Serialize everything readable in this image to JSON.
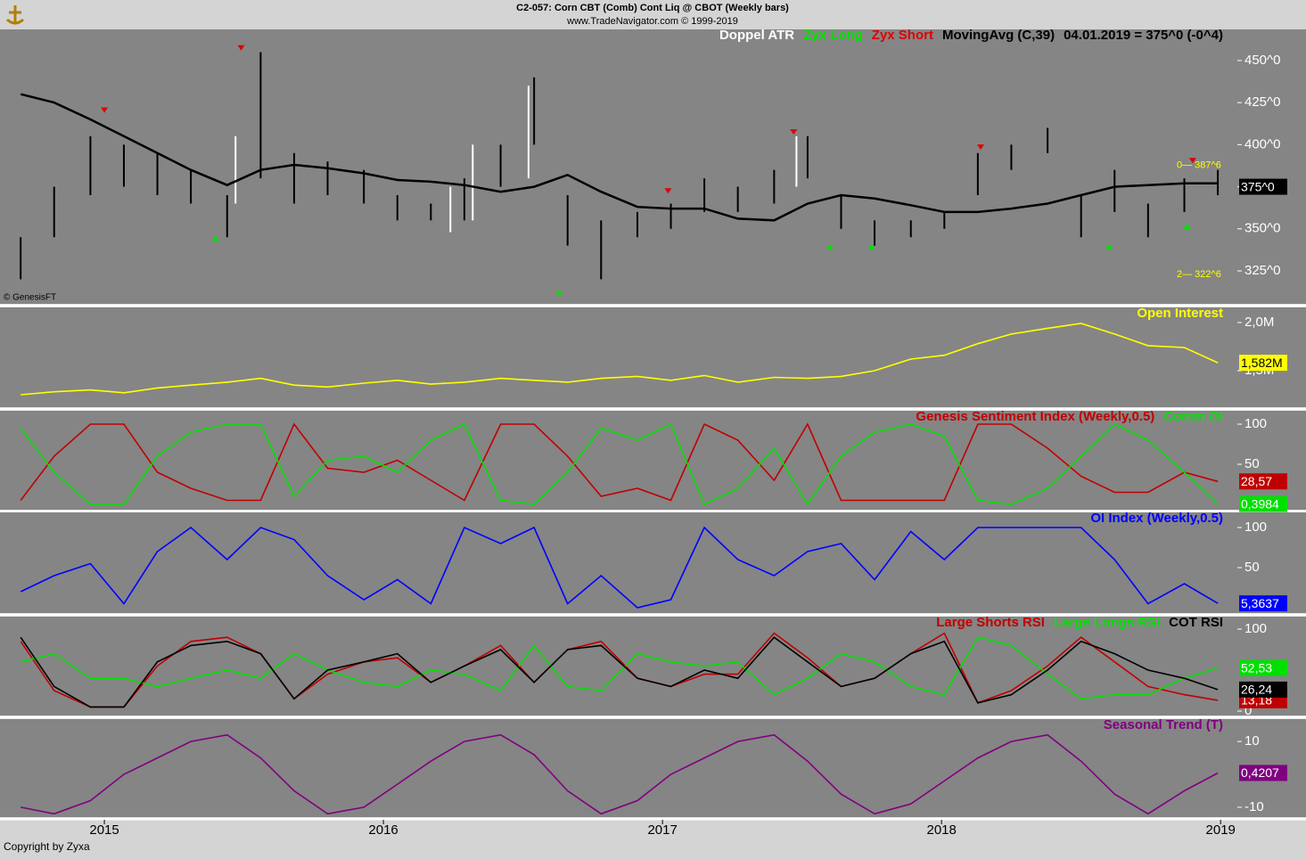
{
  "header": {
    "title": "C2-057:  Corn CBT (Comb) Cont Liq @ CBOT  (Weekly bars)",
    "subtitle": "www.TradeNavigator.com © 1999-2019"
  },
  "footer": "Copyright by Zyxa",
  "chart_data": [
    {
      "type": "ohlc",
      "x": [
        2014.7,
        2014.82,
        2014.95,
        2015.07,
        2015.19,
        2015.31,
        2015.44,
        2015.56,
        2015.68,
        2015.8,
        2015.93,
        2016.05,
        2016.17,
        2016.29,
        2016.42,
        2016.54,
        2016.66,
        2016.78,
        2016.91,
        2017.03,
        2017.15,
        2017.27,
        2017.4,
        2017.52,
        2017.64,
        2017.76,
        2017.89,
        2018.01,
        2018.13,
        2018.25,
        2018.38,
        2018.5,
        2018.62,
        2018.74,
        2018.87,
        2018.99
      ],
      "xlim": [
        2014.642,
        2019.06
      ],
      "high": [
        345,
        375,
        405,
        400,
        395,
        385,
        370,
        455,
        395,
        390,
        385,
        370,
        365,
        380,
        400,
        440,
        370,
        355,
        360,
        365,
        380,
        375,
        385,
        405,
        370,
        355,
        355,
        360,
        395,
        400,
        410,
        370,
        385,
        365,
        380,
        385
      ],
      "low": [
        320,
        345,
        370,
        375,
        370,
        365,
        345,
        380,
        365,
        370,
        365,
        355,
        355,
        355,
        375,
        400,
        340,
        320,
        345,
        350,
        360,
        360,
        365,
        380,
        350,
        340,
        345,
        350,
        370,
        385,
        395,
        345,
        360,
        345,
        360,
        370
      ],
      "color": "#000000",
      "ylim": [
        305.4,
        468.5
      ],
      "yticks": [
        {
          "value": 325,
          "label": "325^0"
        },
        {
          "value": 350,
          "label": "350^0"
        },
        {
          "value": 375,
          "label": "375^0"
        },
        {
          "value": 400,
          "label": "400^0"
        },
        {
          "value": 425,
          "label": "425^0"
        },
        {
          "value": 450,
          "label": "450^0"
        }
      ],
      "watermark": "© GenesisFT",
      "readout": "04.01.2019 = 375^0 (-0^4)",
      "last": {
        "value": 375,
        "label": "375^0"
      },
      "annotations": [
        {
          "value": 387.75,
          "label": "0— 387^6"
        },
        {
          "value": 322.75,
          "label": "2— 322^6"
        }
      ],
      "series": [
        {
          "name": "Doppel ATR",
          "color": "#ffffff",
          "x": [
            2015.47,
            2016.24,
            2016.32,
            2016.52,
            2017.48
          ],
          "high": [
            405,
            375,
            400,
            435,
            405
          ],
          "low": [
            365,
            348,
            355,
            380,
            375
          ]
        },
        {
          "name": "Zyx Long",
          "color": "#00e000",
          "marker": "up",
          "x": [
            2015.4,
            2016.63,
            2017.6,
            2017.75,
            2018.6,
            2018.88
          ],
          "values": [
            345,
            313,
            340,
            340,
            340,
            352
          ]
        },
        {
          "name": "Zyx Short",
          "color": "#e00000",
          "marker": "down",
          "x": [
            2015.0,
            2015.49,
            2017.02,
            2017.47,
            2018.14,
            2018.9
          ],
          "values": [
            420,
            457,
            372,
            407,
            398,
            390
          ]
        },
        {
          "name": "MovingAvg (C,39)",
          "color": "#000000",
          "values": [
            430,
            425,
            415,
            405,
            395,
            385,
            376,
            385,
            388,
            386,
            383,
            379,
            378,
            376,
            372,
            375,
            382,
            372,
            363,
            362,
            362,
            356,
            355,
            365,
            370,
            368,
            364,
            360,
            360,
            362,
            365,
            370,
            375,
            376,
            377,
            377
          ]
        }
      ]
    },
    {
      "type": "line",
      "x": [
        2014.7,
        2014.82,
        2014.95,
        2015.07,
        2015.19,
        2015.31,
        2015.44,
        2015.56,
        2015.68,
        2015.8,
        2015.93,
        2016.05,
        2016.17,
        2016.29,
        2016.42,
        2016.54,
        2016.66,
        2016.78,
        2016.91,
        2017.03,
        2017.15,
        2017.27,
        2017.4,
        2017.52,
        2017.64,
        2017.76,
        2017.89,
        2018.01,
        2018.13,
        2018.25,
        2018.38,
        2018.5,
        2018.62,
        2018.74,
        2018.87,
        2018.99
      ],
      "xlim": [
        2014.642,
        2019.06
      ],
      "ylim": [
        1120000,
        2157000
      ],
      "yticks": [
        {
          "value": 1500000,
          "label": "1,5M"
        },
        {
          "value": 2000000,
          "label": "2,0M"
        }
      ],
      "series": [
        {
          "name": "Open Interest",
          "color": "#ffff00",
          "last_label": "1,582M",
          "values": [
            1250000,
            1280000,
            1300000,
            1270000,
            1320000,
            1350000,
            1380000,
            1420000,
            1350000,
            1330000,
            1370000,
            1400000,
            1360000,
            1380000,
            1420000,
            1400000,
            1380000,
            1420000,
            1440000,
            1400000,
            1450000,
            1380000,
            1430000,
            1420000,
            1440000,
            1500000,
            1620000,
            1660000,
            1780000,
            1880000,
            1940000,
            1990000,
            1880000,
            1760000,
            1740000,
            1582000
          ]
        }
      ]
    },
    {
      "type": "line",
      "x": [
        2014.7,
        2014.82,
        2014.95,
        2015.07,
        2015.19,
        2015.31,
        2015.44,
        2015.56,
        2015.68,
        2015.8,
        2015.93,
        2016.05,
        2016.17,
        2016.29,
        2016.42,
        2016.54,
        2016.66,
        2016.78,
        2016.91,
        2017.03,
        2017.15,
        2017.27,
        2017.4,
        2017.52,
        2017.64,
        2017.76,
        2017.89,
        2018.01,
        2018.13,
        2018.25,
        2018.38,
        2018.5,
        2018.62,
        2018.74,
        2018.87,
        2018.99
      ],
      "xlim": [
        2014.642,
        2019.06
      ],
      "ylim": [
        -6.7,
        116.7
      ],
      "yticks": [
        50,
        100
      ],
      "series": [
        {
          "name": "Genesis Sentiment Index (Weekly,0.5)",
          "color": "#c00000",
          "last_label": "28,57",
          "values": [
            5,
            60,
            100,
            100,
            40,
            20,
            5,
            5,
            100,
            45,
            40,
            55,
            30,
            5,
            100,
            100,
            60,
            10,
            20,
            5,
            100,
            80,
            30,
            100,
            5,
            5,
            5,
            5,
            100,
            100,
            70,
            35,
            15,
            15,
            40,
            28.57
          ]
        },
        {
          "name": "Comm OI",
          "color": "#00e000",
          "last_label": "0,3984",
          "values": [
            95,
            40,
            0,
            0,
            60,
            90,
            100,
            100,
            10,
            55,
            60,
            40,
            80,
            100,
            5,
            0,
            40,
            95,
            80,
            100,
            0,
            20,
            70,
            0,
            60,
            90,
            100,
            85,
            5,
            0,
            20,
            60,
            100,
            80,
            40,
            0.3984
          ]
        }
      ]
    },
    {
      "type": "line",
      "x": [
        2014.7,
        2014.82,
        2014.95,
        2015.07,
        2015.19,
        2015.31,
        2015.44,
        2015.56,
        2015.68,
        2015.8,
        2015.93,
        2016.05,
        2016.17,
        2016.29,
        2016.42,
        2016.54,
        2016.66,
        2016.78,
        2016.91,
        2017.03,
        2017.15,
        2017.27,
        2017.4,
        2017.52,
        2017.64,
        2017.76,
        2017.89,
        2018.01,
        2018.13,
        2018.25,
        2018.38,
        2018.5,
        2018.62,
        2018.74,
        2018.87,
        2018.99
      ],
      "xlim": [
        2014.642,
        2019.06
      ],
      "ylim": [
        -6.7,
        118.9
      ],
      "yticks": [
        50,
        100
      ],
      "series": [
        {
          "name": "OI Index (Weekly,0.5)",
          "color": "#0000ff",
          "last_label": "5,3637",
          "values": [
            20,
            40,
            55,
            5,
            70,
            100,
            60,
            100,
            85,
            40,
            10,
            35,
            5,
            100,
            80,
            100,
            5,
            40,
            0,
            10,
            100,
            60,
            40,
            70,
            80,
            35,
            95,
            60,
            100,
            100,
            100,
            100,
            60,
            5,
            30,
            5.3637
          ]
        }
      ]
    },
    {
      "type": "line",
      "x": [
        2014.7,
        2014.82,
        2014.95,
        2015.07,
        2015.19,
        2015.31,
        2015.44,
        2015.56,
        2015.68,
        2015.8,
        2015.93,
        2016.05,
        2016.17,
        2016.29,
        2016.42,
        2016.54,
        2016.66,
        2016.78,
        2016.91,
        2017.03,
        2017.15,
        2017.27,
        2017.4,
        2017.52,
        2017.64,
        2017.76,
        2017.89,
        2018.01,
        2018.13,
        2018.25,
        2018.38,
        2018.5,
        2018.62,
        2018.74,
        2018.87,
        2018.99
      ],
      "xlim": [
        2014.642,
        2019.06
      ],
      "ylim": [
        -5.4,
        115.2
      ],
      "yticks": [
        0,
        100
      ],
      "series": [
        {
          "name": "Large Shorts RSI",
          "color": "#c00000",
          "last_label": "13,18",
          "values": [
            85,
            25,
            5,
            5,
            55,
            85,
            90,
            70,
            15,
            45,
            60,
            65,
            35,
            55,
            80,
            35,
            75,
            85,
            40,
            30,
            45,
            45,
            95,
            65,
            30,
            40,
            70,
            95,
            10,
            25,
            55,
            90,
            60,
            30,
            20,
            13.18
          ]
        },
        {
          "name": "Large Longs RSI",
          "color": "#00e000",
          "last_label": "52,53",
          "values": [
            60,
            70,
            40,
            40,
            30,
            40,
            50,
            40,
            70,
            50,
            35,
            30,
            50,
            45,
            25,
            80,
            30,
            25,
            70,
            60,
            55,
            60,
            20,
            40,
            70,
            60,
            30,
            20,
            90,
            80,
            45,
            15,
            20,
            20,
            40,
            52.53
          ]
        },
        {
          "name": "COT RSI",
          "color": "#000000",
          "last_label": "26,24",
          "values": [
            90,
            30,
            5,
            5,
            60,
            80,
            85,
            70,
            15,
            50,
            60,
            70,
            35,
            55,
            75,
            35,
            75,
            80,
            40,
            30,
            50,
            40,
            90,
            60,
            30,
            40,
            70,
            85,
            10,
            20,
            50,
            85,
            70,
            50,
            40,
            26.24
          ]
        }
      ]
    },
    {
      "type": "line",
      "x": [
        2014.7,
        2014.82,
        2014.95,
        2015.07,
        2015.19,
        2015.31,
        2015.44,
        2015.56,
        2015.68,
        2015.8,
        2015.93,
        2016.05,
        2016.17,
        2016.29,
        2016.42,
        2016.54,
        2016.66,
        2016.78,
        2016.91,
        2017.03,
        2017.15,
        2017.27,
        2017.4,
        2017.52,
        2017.64,
        2017.76,
        2017.89,
        2018.01,
        2018.13,
        2018.25,
        2018.38,
        2018.5,
        2018.62,
        2018.74,
        2018.87,
        2018.99
      ],
      "xlim": [
        2014.642,
        2019.06
      ],
      "xticks": [
        2015,
        2016,
        2017,
        2018,
        2019
      ],
      "ylim": [
        -13.0,
        16.8
      ],
      "yticks": [
        -10,
        10
      ],
      "series": [
        {
          "name": "Seasonal Trend (T)",
          "color": "#800080",
          "last_label": "0,4207",
          "values": [
            -10,
            -12,
            -8,
            0,
            5,
            10,
            12,
            5,
            -5,
            -12,
            -10,
            -3,
            4,
            10,
            12,
            6,
            -5,
            -12,
            -8,
            0,
            5,
            10,
            12,
            4,
            -6,
            -12,
            -9,
            -2,
            5,
            10,
            12,
            4,
            -6,
            -12,
            -5,
            0.4207
          ]
        }
      ]
    }
  ]
}
